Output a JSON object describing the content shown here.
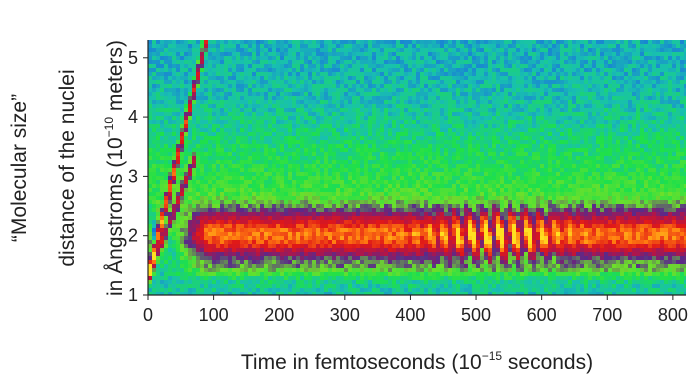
{
  "chart_data": {
    "type": "heatmap",
    "title": "",
    "xlabel": {
      "prefix": "Time in femtoseconds (10",
      "exp": "−15",
      "suffix": " seconds)"
    },
    "ylabel": {
      "line1": "“Molecular size”",
      "line2": "distance of the nuclei",
      "line3_prefix": "in Ångstroms (10",
      "line3_exp": "−10",
      "line3_suffix": " meters)"
    },
    "xlim": [
      0,
      820
    ],
    "ylim": [
      1,
      5.3
    ],
    "x_ticks": [
      0,
      100,
      200,
      300,
      400,
      500,
      600,
      700,
      800
    ],
    "y_ticks": [
      1,
      2,
      3,
      4,
      5
    ],
    "colormap": [
      "#1030d0",
      "#1a6fe0",
      "#18c0b0",
      "#1ee04a",
      "#6ee02a",
      "#5a2a8a",
      "#b0154a",
      "#e01818",
      "#ff7a10",
      "#ffe020"
    ],
    "bound_state": {
      "center": 2.0,
      "width": 0.42,
      "range": [
        90,
        820
      ]
    },
    "wavepacket_center": 2.0,
    "wavepacket_revivals": [
      {
        "t": 530,
        "amp": 0.9,
        "spread": 95
      },
      {
        "t": 0,
        "amp": 0.6,
        "spread": 30
      }
    ],
    "vibrational_period_fs": 21.5,
    "dissociating_branch": {
      "start": [
        0,
        1.3
      ],
      "velocity": 0.045,
      "cut_off_time": 110
    }
  }
}
